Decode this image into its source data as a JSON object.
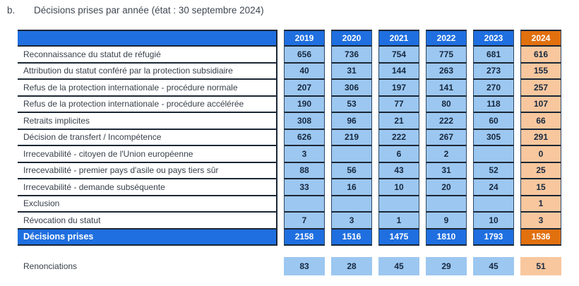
{
  "title": {
    "prefix": "b.",
    "text": "Décisions prises par année (état : 30 septembre 2024)"
  },
  "table": {
    "year_headers": [
      "2019",
      "2020",
      "2021",
      "2022",
      "2023",
      "2024"
    ],
    "rows": [
      {
        "label": "Reconnaissance du statut de réfugié",
        "values": [
          "656",
          "736",
          "754",
          "775",
          "681",
          "616"
        ]
      },
      {
        "label": "Attribution du statut conféré par la protection subsidiaire",
        "values": [
          "40",
          "31",
          "144",
          "263",
          "273",
          "155"
        ]
      },
      {
        "label": "Refus de la protection internationale - procédure normale",
        "values": [
          "207",
          "306",
          "197",
          "141",
          "270",
          "257"
        ]
      },
      {
        "label": "Refus de la protection internationale - procédure accélérée",
        "values": [
          "190",
          "53",
          "77",
          "80",
          "118",
          "107"
        ]
      },
      {
        "label": "Retraits implicites",
        "values": [
          "308",
          "96",
          "21",
          "222",
          "60",
          "66"
        ]
      },
      {
        "label": "Décision de transfert / Incompétence",
        "values": [
          "626",
          "219",
          "222",
          "267",
          "305",
          "291"
        ]
      },
      {
        "label": "Irrecevabilité - citoyen de l'Union européenne",
        "values": [
          "3",
          "",
          "6",
          "2",
          "",
          "0"
        ]
      },
      {
        "label": "Irrecevabilité - premier pays d'asile ou pays tiers sûr",
        "values": [
          "88",
          "56",
          "43",
          "31",
          "52",
          "25"
        ]
      },
      {
        "label": "Irrecevabilité - demande subséquente",
        "values": [
          "33",
          "16",
          "10",
          "20",
          "24",
          "15"
        ]
      },
      {
        "label": "Exclusion",
        "values": [
          "",
          "",
          "",
          "",
          "",
          "1"
        ]
      },
      {
        "label": "Révocation du statut",
        "values": [
          "7",
          "3",
          "1",
          "9",
          "10",
          "3"
        ]
      }
    ],
    "totals": {
      "label": "Décisions prises",
      "values": [
        "2158",
        "1516",
        "1475",
        "1810",
        "1793",
        "1536"
      ]
    },
    "renonciations": {
      "label": "Renonciations",
      "values": [
        "83",
        "28",
        "45",
        "29",
        "45",
        "51"
      ]
    }
  },
  "colors": {
    "header_blue": "#1f6fe0",
    "light_blue": "#9cc7f0",
    "header_orange": "#e1700f",
    "light_orange": "#f8c79e",
    "border_dark": "#1b2735",
    "column_edge": "#2b4766",
    "title_text": "#3f4752",
    "label_text": "#39414b",
    "number_text": "#16283f"
  }
}
